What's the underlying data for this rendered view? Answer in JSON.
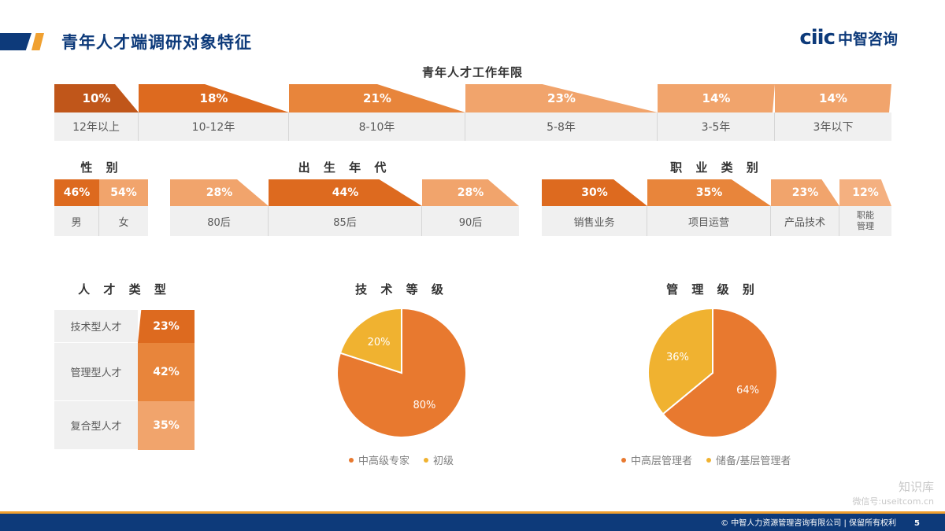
{
  "header": {
    "title": "青年人才端调研对象特征",
    "logo_mark": "ciic",
    "logo_text": "中智咨询"
  },
  "colors": {
    "dark": "#c0561a",
    "deep": "#dd6a1f",
    "mid": "#e8853b",
    "light": "#f1a46c",
    "lighter": "#f4b080",
    "yellow": "#f0b230",
    "label_bg": "#f0f0f0",
    "brand_blue": "#0d3a7a"
  },
  "chart_data": [
    {
      "type": "bar",
      "title": "青年人才工作年限",
      "categories": [
        "12年以上",
        "10-12年",
        "8-10年",
        "5-8年",
        "3-5年",
        "3年以下"
      ],
      "values": [
        10,
        18,
        21,
        23,
        14,
        14
      ],
      "labels": [
        "10%",
        "18%",
        "21%",
        "23%",
        "14%",
        "14%"
      ]
    },
    {
      "type": "bar",
      "title": "性 别",
      "categories": [
        "男",
        "女"
      ],
      "values": [
        46,
        54
      ],
      "labels": [
        "46%",
        "54%"
      ]
    },
    {
      "type": "bar",
      "title": "出 生 年 代",
      "categories": [
        "80后",
        "85后",
        "90后"
      ],
      "values": [
        28,
        44,
        28
      ],
      "labels": [
        "28%",
        "44%",
        "28%"
      ]
    },
    {
      "type": "bar",
      "title": "职 业 类 别",
      "categories": [
        "销售业务",
        "项目运营",
        "产品技术",
        "职能管理"
      ],
      "values": [
        30,
        35,
        23,
        12
      ],
      "labels": [
        "30%",
        "35%",
        "23%",
        "12%"
      ]
    },
    {
      "type": "bar",
      "title": "人 才 类 型",
      "categories": [
        "技术型人才",
        "管理型人才",
        "复合型人才"
      ],
      "values": [
        23,
        42,
        35
      ],
      "labels": [
        "23%",
        "42%",
        "35%"
      ]
    },
    {
      "type": "pie",
      "title": "技 术 等 级",
      "categories": [
        "中高级专家",
        "初级"
      ],
      "values": [
        80,
        20
      ],
      "labels": [
        "80%",
        "20%"
      ],
      "colors": [
        "#e8792f",
        "#f0b230"
      ]
    },
    {
      "type": "pie",
      "title": "管 理 级 别",
      "categories": [
        "中高层管理者",
        "储备/基层管理者"
      ],
      "values": [
        64,
        36
      ],
      "labels": [
        "64%",
        "36%"
      ],
      "colors": [
        "#e8792f",
        "#f0b230"
      ]
    }
  ],
  "footer": {
    "copyright": "© 中智人力资源管理咨询有限公司 | 保留所有权利",
    "page": "5"
  },
  "watermark": {
    "line1": "知识库",
    "line2": "微信号:useitcom.cn"
  }
}
